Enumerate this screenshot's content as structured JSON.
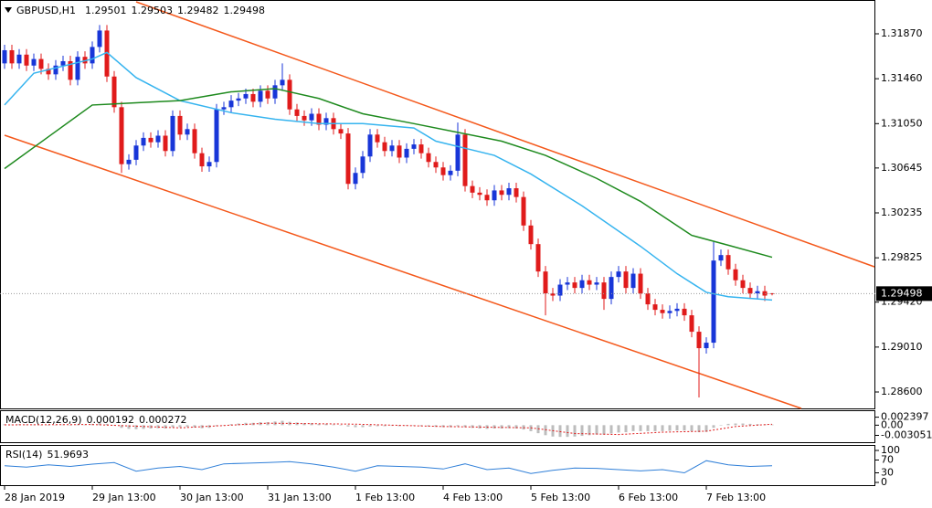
{
  "chart_data": [
    {
      "type": "candlestick",
      "title": "GBPUSD,H1",
      "open": [
        1.316,
        1.3172,
        1.316,
        1.3168,
        1.3158,
        1.3164,
        1.3155,
        1.315,
        1.3158,
        1.3162,
        1.3145,
        1.3166,
        1.316,
        1.3175,
        1.319,
        1.3148,
        1.312,
        1.3068,
        1.3072,
        1.3085,
        1.3092,
        1.3088,
        1.3094,
        1.308,
        1.3112,
        1.3095,
        1.31,
        1.3078,
        1.3066,
        1.307,
        1.3118,
        1.312,
        1.3126,
        1.3128,
        1.3132,
        1.3125,
        1.3135,
        1.3128,
        1.314,
        1.3145,
        1.3118,
        1.3112,
        1.3108,
        1.3114,
        1.3104,
        1.311,
        1.31,
        1.3096,
        1.305,
        1.306,
        1.3075,
        1.3095,
        1.3088,
        1.308,
        1.3085,
        1.3074,
        1.3082,
        1.3086,
        1.3078,
        1.307,
        1.3065,
        1.3058,
        1.3062,
        1.3095,
        1.3048,
        1.3042,
        1.304,
        1.3035,
        1.3044,
        1.304,
        1.3046,
        1.3038,
        1.3012,
        1.2995,
        1.297,
        1.295,
        1.2948,
        1.2958,
        1.296,
        1.2955,
        1.2962,
        1.2958,
        1.296,
        1.2945,
        1.2965,
        1.297,
        1.2955,
        1.2968,
        1.295,
        1.294,
        1.2935,
        1.2932,
        1.2934,
        1.2936,
        1.293,
        1.2915,
        1.29,
        1.2905,
        1.298,
        1.2985,
        1.2972,
        1.2962,
        1.2955,
        1.295,
        1.2952,
        1.29501
      ],
      "high": [
        1.3177,
        1.3177,
        1.3173,
        1.3173,
        1.3169,
        1.3169,
        1.316,
        1.3163,
        1.3167,
        1.3167,
        1.3171,
        1.3171,
        1.318,
        1.3195,
        1.3195,
        1.3153,
        1.3125,
        1.3077,
        1.309,
        1.3097,
        1.3097,
        1.3099,
        1.3099,
        1.3117,
        1.3117,
        1.3105,
        1.3105,
        1.3083,
        1.3075,
        1.3123,
        1.3125,
        1.3131,
        1.3133,
        1.3137,
        1.3137,
        1.314,
        1.314,
        1.3145,
        1.316,
        1.315,
        1.3123,
        1.3117,
        1.3119,
        1.3119,
        1.3115,
        1.3115,
        1.3105,
        1.3101,
        1.3065,
        1.308,
        1.31,
        1.31,
        1.3093,
        1.309,
        1.309,
        1.3087,
        1.3091,
        1.3091,
        1.3083,
        1.3075,
        1.307,
        1.3067,
        1.3106,
        1.31,
        1.3053,
        1.3047,
        1.3045,
        1.3049,
        1.3049,
        1.3051,
        1.3051,
        1.3043,
        1.3017,
        1.3,
        1.2975,
        1.2955,
        1.2963,
        1.2965,
        1.2965,
        1.2967,
        1.2967,
        1.2965,
        1.2965,
        1.297,
        1.2975,
        1.2975,
        1.2973,
        1.2973,
        1.2955,
        1.2945,
        1.294,
        1.2939,
        1.2941,
        1.2941,
        1.2935,
        1.292,
        1.291,
        1.2997,
        1.299,
        1.299,
        1.2977,
        1.2967,
        1.296,
        1.2957,
        1.2957,
        1.29503
      ],
      "low": [
        1.3155,
        1.3155,
        1.3155,
        1.3153,
        1.3153,
        1.315,
        1.3145,
        1.3145,
        1.3153,
        1.314,
        1.314,
        1.3155,
        1.3155,
        1.317,
        1.3143,
        1.3115,
        1.306,
        1.3063,
        1.3067,
        1.308,
        1.3083,
        1.3083,
        1.3075,
        1.3075,
        1.309,
        1.309,
        1.3073,
        1.3061,
        1.3061,
        1.3065,
        1.3113,
        1.3115,
        1.3121,
        1.3123,
        1.312,
        1.312,
        1.3123,
        1.3123,
        1.3135,
        1.3113,
        1.3107,
        1.3103,
        1.3103,
        1.3099,
        1.3099,
        1.3095,
        1.3091,
        1.3045,
        1.3045,
        1.3055,
        1.307,
        1.3083,
        1.3075,
        1.3075,
        1.3069,
        1.3069,
        1.3077,
        1.3073,
        1.3065,
        1.306,
        1.3053,
        1.3053,
        1.3057,
        1.3043,
        1.3037,
        1.3035,
        1.303,
        1.303,
        1.3035,
        1.3035,
        1.3033,
        1.3007,
        1.299,
        1.2965,
        1.293,
        1.2943,
        1.2943,
        1.2953,
        1.295,
        1.295,
        1.2953,
        1.2953,
        1.2935,
        1.294,
        1.296,
        1.295,
        1.295,
        1.2945,
        1.2935,
        1.293,
        1.2927,
        1.2927,
        1.2929,
        1.2925,
        1.291,
        1.2855,
        1.2895,
        1.29,
        1.2975,
        1.2967,
        1.2957,
        1.295,
        1.2945,
        1.2945,
        1.2943,
        1.29482
      ],
      "close": [
        1.3172,
        1.316,
        1.3168,
        1.3158,
        1.3164,
        1.3155,
        1.315,
        1.3158,
        1.3162,
        1.3145,
        1.3166,
        1.316,
        1.3175,
        1.319,
        1.3148,
        1.312,
        1.3068,
        1.3072,
        1.3085,
        1.3092,
        1.3088,
        1.3094,
        1.308,
        1.3112,
        1.3095,
        1.31,
        1.3078,
        1.3066,
        1.307,
        1.3118,
        1.312,
        1.3126,
        1.3128,
        1.3132,
        1.3125,
        1.3135,
        1.3128,
        1.314,
        1.3145,
        1.3118,
        1.3112,
        1.3108,
        1.3114,
        1.3104,
        1.311,
        1.31,
        1.3096,
        1.305,
        1.306,
        1.3075,
        1.3095,
        1.3088,
        1.308,
        1.3085,
        1.3074,
        1.3082,
        1.3086,
        1.3078,
        1.307,
        1.3065,
        1.3058,
        1.3062,
        1.3095,
        1.3048,
        1.3042,
        1.304,
        1.3035,
        1.3044,
        1.304,
        1.3046,
        1.3038,
        1.3012,
        1.2995,
        1.297,
        1.295,
        1.2948,
        1.2958,
        1.296,
        1.2955,
        1.2962,
        1.2958,
        1.296,
        1.2945,
        1.2965,
        1.297,
        1.2955,
        1.2968,
        1.295,
        1.294,
        1.2935,
        1.2932,
        1.2934,
        1.2936,
        1.293,
        1.2915,
        1.29,
        1.2905,
        1.298,
        1.2985,
        1.2972,
        1.2962,
        1.2955,
        1.295,
        1.2952,
        1.2948,
        1.29498
      ],
      "up_color": "#1836d8",
      "down_color": "#e01b1b",
      "ylim": [
        1.2845,
        1.32162
      ],
      "yticks": [
        {
          "value": 1.3187,
          "label": "1.31870"
        },
        {
          "value": 1.3146,
          "label": "1.31460"
        },
        {
          "value": 1.3105,
          "label": "1.31050"
        },
        1.30645,
        1.30235,
        1.29825,
        {
          "value": 1.2942,
          "label": "1.29420"
        },
        {
          "value": 1.2901,
          "label": "1.29010"
        },
        {
          "value": 1.286,
          "label": "1.28600"
        }
      ],
      "xticks": [
        {
          "value": 0,
          "label": "28 Jan 2019"
        },
        {
          "value": 12,
          "label": "29 Jan 13:00"
        },
        {
          "value": 24,
          "label": "30 Jan 13:00"
        },
        {
          "value": 36,
          "label": "31 Jan 13:00"
        },
        {
          "value": 48,
          "label": "1 Feb 13:00"
        },
        {
          "value": 60,
          "label": "4 Feb 13:00"
        },
        {
          "value": 72,
          "label": "5 Feb 13:00"
        },
        {
          "value": 84,
          "label": "6 Feb 13:00"
        },
        {
          "value": 96,
          "label": "7 Feb 13:00"
        }
      ],
      "overlays": [
        {
          "color": "#36b4ef",
          "x": [
            0,
            4,
            12,
            14,
            18,
            24,
            31,
            37,
            43,
            49,
            56,
            59,
            67,
            72,
            79,
            87,
            92,
            96,
            99,
            105
          ],
          "values": [
            1.3122,
            1.3151,
            1.3164,
            1.317,
            1.3147,
            1.3126,
            1.3115,
            1.3109,
            1.3105,
            1.3105,
            1.3101,
            1.3089,
            1.3076,
            1.3059,
            1.303,
            1.2993,
            1.2968,
            1.2951,
            1.2947,
            1.2944
          ]
        },
        {
          "color": "#1e8a1e",
          "x": [
            0,
            6,
            12,
            18,
            24,
            31,
            37,
            43,
            49,
            56,
            62,
            68,
            74,
            81,
            87,
            94,
            99,
            105
          ],
          "values": [
            1.3064,
            1.3093,
            1.3122,
            1.3124,
            1.3126,
            1.3134,
            1.3137,
            1.3128,
            1.3114,
            1.3105,
            1.3097,
            1.3089,
            1.3076,
            1.3055,
            1.3034,
            1.3003,
            1.2994,
            1.2983
          ]
        },
        {
          "color": "#f4581b",
          "x": [
            18,
            119
          ],
          "values": [
            1.32162,
            1.29743
          ]
        },
        {
          "color": "#f4581b",
          "x": [
            0,
            109
          ],
          "values": [
            1.30944,
            1.2845
          ]
        }
      ],
      "price_line": true
    },
    {
      "type": "macd",
      "title": "MACD(12,26,9)",
      "histogram": [
        0.0003,
        0.0002,
        0.0003,
        0.0002,
        0.0002,
        0.0001,
        0.0,
        0.0001,
        0.0002,
        0.0,
        0.0002,
        0.0002,
        0.0004,
        0.0007,
        0.0004,
        0.0,
        -0.0008,
        -0.0011,
        -0.0012,
        -0.0011,
        -0.001,
        -0.0009,
        -0.001,
        -0.0006,
        -0.0006,
        -0.0005,
        -0.0007,
        -0.0009,
        -0.0008,
        -0.0003,
        0.0,
        0.0003,
        0.0005,
        0.0007,
        0.0007,
        0.0009,
        0.0009,
        0.0011,
        0.0013,
        0.001,
        0.0008,
        0.0006,
        0.0006,
        0.0004,
        0.0004,
        0.0002,
        0.0001,
        -0.0004,
        -0.0006,
        -0.0006,
        -0.0004,
        -0.0003,
        -0.0003,
        -0.0002,
        -0.0003,
        -0.0002,
        -0.0002,
        -0.0003,
        -0.0004,
        -0.0005,
        -0.0006,
        -0.0006,
        -0.0003,
        -0.0006,
        -0.0008,
        -0.001,
        -0.0011,
        -0.001,
        -0.001,
        -0.0009,
        -0.001,
        -0.0013,
        -0.0018,
        -0.0024,
        -0.003,
        -0.0034,
        -0.0035,
        -0.0035,
        -0.0034,
        -0.0032,
        -0.003,
        -0.0028,
        -0.0028,
        -0.0025,
        -0.0022,
        -0.0021,
        -0.0018,
        -0.0018,
        -0.0018,
        -0.0018,
        -0.0018,
        -0.0017,
        -0.0016,
        -0.0016,
        -0.0018,
        -0.0021,
        -0.002,
        -0.0008,
        0.0,
        0.0004,
        0.0005,
        0.0005,
        0.0004,
        0.0003,
        0.0002,
        0.000192
      ],
      "hist_color": "#bdbdbd",
      "signal": {
        "color": "#e01b1b",
        "x": [
          0,
          12,
          24,
          36,
          48,
          60,
          72,
          78,
          84,
          90,
          96,
          100,
          105
        ],
        "values": [
          0.0001,
          0.0002,
          -0.0008,
          0.0006,
          0.0003,
          -0.0004,
          -0.0008,
          -0.0025,
          -0.0028,
          -0.0021,
          -0.0018,
          -0.0004,
          0.000272
        ]
      },
      "ylim": [
        -0.0051,
        0.0042
      ],
      "yticks": [
        0.002397,
        {
          "value": 0,
          "label": "0.00"
        },
        -0.003051
      ]
    },
    {
      "type": "line",
      "title": "RSI(14)",
      "color": "#2f7fd8",
      "x": [
        0,
        3,
        6,
        9,
        12,
        15,
        18,
        21,
        24,
        27,
        30,
        33,
        36,
        39,
        42,
        45,
        48,
        51,
        54,
        57,
        60,
        63,
        66,
        69,
        72,
        75,
        78,
        81,
        84,
        87,
        90,
        93,
        96,
        99,
        102,
        105
      ],
      "values": [
        52,
        48,
        55,
        50,
        57,
        62,
        35,
        45,
        50,
        40,
        58,
        60,
        62,
        65,
        58,
        48,
        35,
        52,
        50,
        48,
        42,
        58,
        40,
        45,
        28,
        38,
        45,
        44,
        40,
        36,
        40,
        30,
        68,
        55,
        50,
        51.9693
      ],
      "ylim": [
        0,
        100
      ],
      "yticks": [
        100,
        70,
        30,
        0
      ]
    }
  ]
}
